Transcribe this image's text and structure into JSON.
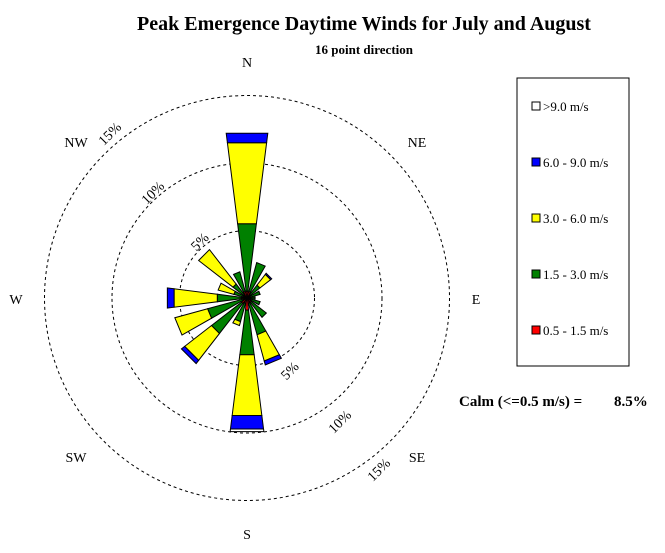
{
  "chart_data": {
    "type": "wind-rose",
    "title": "Peak Emergence Daytime Winds for July and August",
    "subtitle": "16 point direction",
    "rings": [
      "5%",
      "10%",
      "15%"
    ],
    "ring_values": [
      5,
      10,
      15
    ],
    "compass": {
      "N": "N",
      "NE": "NE",
      "E": "E",
      "SE": "SE",
      "S": "S",
      "SW": "SW",
      "W": "W",
      "NW": "NW"
    },
    "directions": [
      "N",
      "NNE",
      "NE",
      "ENE",
      "E",
      "ESE",
      "SE",
      "SSE",
      "S",
      "SSW",
      "SW",
      "WSW",
      "W",
      "WNW",
      "NW",
      "NNW"
    ],
    "bins": [
      {
        "label": "0.5 - 1.5 m/s",
        "color": "#ff0000"
      },
      {
        "label": "1.5 - 3.0 m/s",
        "color": "#008000"
      },
      {
        "label": "3.0 - 6.0 m/s",
        "color": "#ffff00"
      },
      {
        "label": "6.0 - 9.0 m/s",
        "color": "#0000ff"
      },
      {
        "label": ">9.0 m/s",
        "color": "#ffffff"
      }
    ],
    "legend": [
      ">9.0 m/s",
      "6.0 - 9.0 m/s",
      "3.0 - 6.0 m/s",
      "1.5 - 3.0 m/s",
      "0.5 - 1.5 m/s"
    ],
    "values": {
      "N": [
        0.5,
        5.0,
        6.0,
        0.7,
        0
      ],
      "NNE": [
        0.5,
        2.2,
        0,
        0,
        0
      ],
      "NE": [
        0.3,
        0.9,
        1.0,
        0.1,
        0
      ],
      "ENE": [
        0.2,
        0.8,
        0,
        0,
        0
      ],
      "E": [
        0.2,
        0.4,
        0,
        0,
        0
      ],
      "ESE": [
        0.3,
        0.7,
        0,
        0,
        0
      ],
      "SE": [
        0.4,
        1.4,
        0,
        0,
        0
      ],
      "SSE": [
        0.4,
        2.4,
        2.0,
        0.3,
        0
      ],
      "S": [
        0.9,
        3.3,
        4.5,
        1.0,
        0.2
      ],
      "SSW": [
        0.4,
        1.4,
        0.3,
        0,
        0
      ],
      "SW": [
        0.5,
        2.8,
        2.5,
        0.3,
        0
      ],
      "WSW": [
        0.3,
        2.7,
        2.5,
        0,
        0
      ],
      "W": [
        0.4,
        1.8,
        3.2,
        0.5,
        0
      ],
      "WNW": [
        0.3,
        0.7,
        1.2,
        0,
        0
      ],
      "NW": [
        0.3,
        1.0,
        3.2,
        0,
        0
      ],
      "NNW": [
        0.5,
        1.5,
        0,
        0,
        0
      ]
    },
    "calm_label": "Calm (<=0.5 m/s) =",
    "calm_value": "8.5%"
  }
}
